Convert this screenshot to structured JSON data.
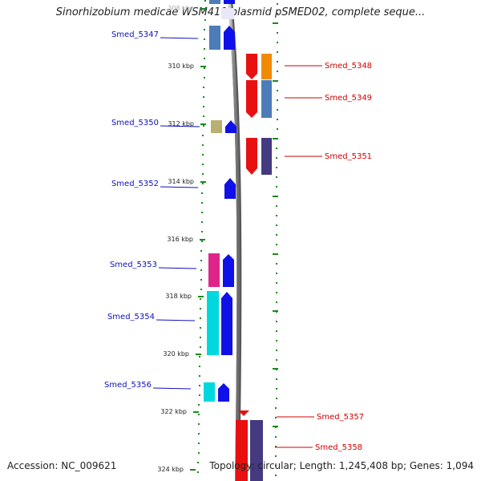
{
  "title": "Sinorhizobium medicae WSM419 plasmid pSMED02, complete seque...",
  "accession": "Accession: NC_009621",
  "topology_info": "Topology: circular; Length: 1,245,408 bp; Genes: 1,094",
  "colors": {
    "label_left": "#1010c0",
    "label_right": "#d00000",
    "tick": "#1a8a1a",
    "backbone": "#808080"
  },
  "scale_labels": [
    "308 kbp",
    "310 kbp",
    "312 kbp",
    "314 kbp",
    "316 kbp",
    "318 kbp",
    "320 kbp",
    "322 kbp",
    "324 kbp"
  ],
  "genes_left": [
    {
      "label": "Smed_5347",
      "color": "#4d7db8"
    },
    {
      "label": "Smed_5350",
      "color": "#b8b070"
    },
    {
      "label": "Smed_5352",
      "color": null
    },
    {
      "label": "Smed_5353",
      "color": "#e0258a"
    },
    {
      "label": "Smed_5354",
      "color": "#00d8e0"
    },
    {
      "label": "Smed_5356",
      "color": "#00d8e0"
    }
  ],
  "genes_right": [
    {
      "label": "Smed_5348",
      "color": "#f08a00"
    },
    {
      "label": "Smed_5349",
      "color": "#4d7db8"
    },
    {
      "label": "Smed_5351",
      "color": "#443a80"
    },
    {
      "label": "Smed_5357",
      "color": null
    },
    {
      "label": "Smed_5358",
      "color": "#443a80"
    }
  ]
}
